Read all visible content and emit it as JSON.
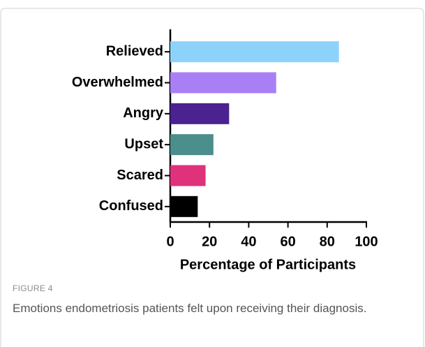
{
  "chart_data": {
    "type": "barh",
    "categories": [
      "Relieved",
      "Overwhelmed",
      "Angry",
      "Upset",
      "Scared",
      "Confused"
    ],
    "values": [
      86,
      54,
      30,
      22,
      18,
      14
    ],
    "colors": [
      "#8dd2fa",
      "#a97ff6",
      "#4a2390",
      "#4b8e8c",
      "#e0327b",
      "#000000"
    ],
    "xlabel": "Percentage of Participants",
    "xlim": [
      0,
      100
    ],
    "xticks": [
      0,
      20,
      40,
      60,
      80,
      100
    ]
  },
  "figure": {
    "label": "FIGURE 4",
    "caption": "Emotions endometriosis patients felt upon receiving their diagnosis."
  }
}
